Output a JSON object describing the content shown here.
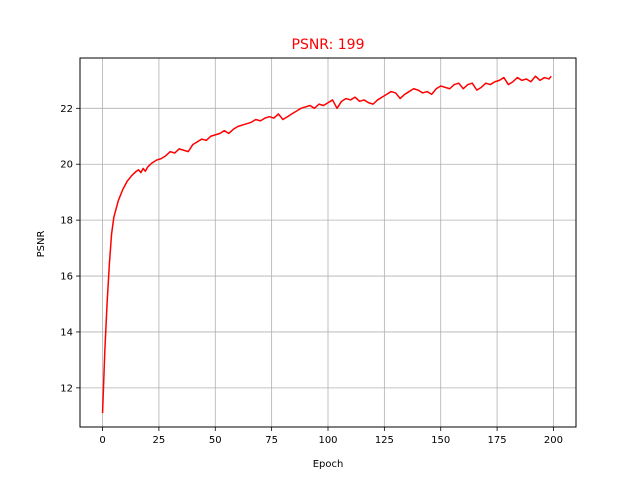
{
  "chart_data": {
    "type": "line",
    "title": "PSNR: 199",
    "xlabel": "Epoch",
    "ylabel": "PSNR",
    "xlim": [
      -10,
      210
    ],
    "ylim": [
      10.6,
      23.8
    ],
    "xticks": [
      0,
      25,
      50,
      75,
      100,
      125,
      150,
      175,
      200
    ],
    "yticks": [
      12,
      14,
      16,
      18,
      20,
      22
    ],
    "grid": true,
    "legend": "none",
    "colors": {
      "series": "#ff0000",
      "title": "#ff0000",
      "grid": "#b0b0b0",
      "axes": "#000000"
    },
    "series": [
      {
        "x": [
          0,
          1,
          2,
          3,
          4,
          5,
          7,
          9,
          11,
          13,
          15,
          16,
          17,
          18,
          19,
          20,
          22,
          24,
          26,
          28,
          30,
          32,
          34,
          36,
          38,
          40,
          42,
          44,
          46,
          48,
          50,
          52,
          54,
          56,
          58,
          60,
          62,
          64,
          66,
          68,
          70,
          72,
          74,
          76,
          78,
          80,
          82,
          84,
          86,
          88,
          90,
          92,
          94,
          96,
          98,
          100,
          102,
          104,
          106,
          108,
          110,
          112,
          114,
          116,
          118,
          120,
          122,
          124,
          126,
          128,
          130,
          132,
          134,
          136,
          138,
          140,
          142,
          144,
          146,
          148,
          150,
          152,
          154,
          156,
          158,
          160,
          162,
          164,
          166,
          168,
          170,
          172,
          174,
          176,
          178,
          180,
          182,
          184,
          186,
          188,
          190,
          192,
          194,
          196,
          198,
          199
        ],
        "y": [
          11.1,
          13.3,
          15.0,
          16.4,
          17.5,
          18.1,
          18.7,
          19.1,
          19.4,
          19.6,
          19.75,
          19.8,
          19.7,
          19.85,
          19.75,
          19.9,
          20.05,
          20.15,
          20.2,
          20.3,
          20.45,
          20.4,
          20.55,
          20.5,
          20.45,
          20.7,
          20.8,
          20.9,
          20.85,
          21.0,
          21.05,
          21.1,
          21.2,
          21.1,
          21.25,
          21.35,
          21.4,
          21.45,
          21.5,
          21.6,
          21.55,
          21.65,
          21.7,
          21.65,
          21.8,
          21.6,
          21.7,
          21.8,
          21.9,
          22.0,
          22.05,
          22.1,
          22.0,
          22.15,
          22.1,
          22.2,
          22.3,
          22.0,
          22.25,
          22.35,
          22.3,
          22.4,
          22.25,
          22.3,
          22.2,
          22.15,
          22.3,
          22.4,
          22.5,
          22.6,
          22.55,
          22.35,
          22.5,
          22.6,
          22.7,
          22.65,
          22.55,
          22.6,
          22.5,
          22.7,
          22.8,
          22.75,
          22.7,
          22.85,
          22.9,
          22.7,
          22.85,
          22.9,
          22.65,
          22.75,
          22.9,
          22.85,
          22.95,
          23.0,
          23.1,
          22.85,
          22.95,
          23.1,
          23.0,
          23.05,
          22.95,
          23.15,
          23.0,
          23.1,
          23.05,
          23.15
        ]
      }
    ]
  }
}
